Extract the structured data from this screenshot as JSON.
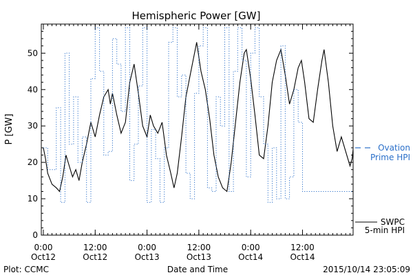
{
  "chart_data": {
    "type": "line",
    "title": "Hemispheric Power [GW]",
    "xlabel": "Date and Time",
    "ylabel": "P [GW]",
    "ylim": [
      0,
      58
    ],
    "yticks": [
      0,
      10,
      20,
      30,
      40,
      50
    ],
    "x_start": "2015-10-12 00:00",
    "x_end": "2015-10-14 23:05",
    "xticks": [
      {
        "t": "2015-10-12 00:00",
        "line1": "0:00",
        "line2": "Oct12"
      },
      {
        "t": "2015-10-12 12:00",
        "line1": "12:00",
        "line2": "Oct12"
      },
      {
        "t": "2015-10-13 00:00",
        "line1": "0:00",
        "line2": "Oct13"
      },
      {
        "t": "2015-10-13 12:00",
        "line1": "12:00",
        "line2": "Oct13"
      },
      {
        "t": "2015-10-14 00:00",
        "line1": "0:00",
        "line2": "Oct14"
      },
      {
        "t": "2015-10-14 12:00",
        "line1": "12:00",
        "line2": "Oct14"
      }
    ],
    "grid": false,
    "legend_position": "right",
    "series": [
      {
        "name": "SWPC 5-min HPI",
        "legend_lines": [
          "SWPC",
          "5-min HPI"
        ],
        "style": "solid",
        "color": "#000000",
        "points": [
          [
            "2015-10-12 00:00",
            24
          ],
          [
            "2015-10-12 00:30",
            21
          ],
          [
            "2015-10-12 01:00",
            17
          ],
          [
            "2015-10-12 02:00",
            14
          ],
          [
            "2015-10-12 03:00",
            13
          ],
          [
            "2015-10-12 03:45",
            12
          ],
          [
            "2015-10-12 04:30",
            16
          ],
          [
            "2015-10-12 05:15",
            22
          ],
          [
            "2015-10-12 06:00",
            19
          ],
          [
            "2015-10-12 06:45",
            16
          ],
          [
            "2015-10-12 07:30",
            18
          ],
          [
            "2015-10-12 08:15",
            15
          ],
          [
            "2015-10-12 09:00",
            20
          ],
          [
            "2015-10-12 10:00",
            25
          ],
          [
            "2015-10-12 11:00",
            31
          ],
          [
            "2015-10-12 12:00",
            27
          ],
          [
            "2015-10-12 13:00",
            33
          ],
          [
            "2015-10-12 14:00",
            38
          ],
          [
            "2015-10-12 15:00",
            40
          ],
          [
            "2015-10-12 15:30",
            36
          ],
          [
            "2015-10-12 16:00",
            39
          ],
          [
            "2015-10-12 17:00",
            33
          ],
          [
            "2015-10-12 18:00",
            28
          ],
          [
            "2015-10-12 19:00",
            31
          ],
          [
            "2015-10-12 20:00",
            42
          ],
          [
            "2015-10-12 21:00",
            47
          ],
          [
            "2015-10-12 22:00",
            39
          ],
          [
            "2015-10-12 23:00",
            30
          ],
          [
            "2015-10-13 00:00",
            27
          ],
          [
            "2015-10-13 00:45",
            33
          ],
          [
            "2015-10-13 01:30",
            30
          ],
          [
            "2015-10-13 02:30",
            28
          ],
          [
            "2015-10-13 03:30",
            31
          ],
          [
            "2015-10-13 04:30",
            22
          ],
          [
            "2015-10-13 05:30",
            17
          ],
          [
            "2015-10-13 06:15",
            13
          ],
          [
            "2015-10-13 07:00",
            17
          ],
          [
            "2015-10-13 08:00",
            27
          ],
          [
            "2015-10-13 09:00",
            38
          ],
          [
            "2015-10-13 10:00",
            44
          ],
          [
            "2015-10-13 11:00",
            50
          ],
          [
            "2015-10-13 11:30",
            53
          ],
          [
            "2015-10-13 12:30",
            45
          ],
          [
            "2015-10-13 13:30",
            40
          ],
          [
            "2015-10-13 14:30",
            32
          ],
          [
            "2015-10-13 15:30",
            22
          ],
          [
            "2015-10-13 16:30",
            16
          ],
          [
            "2015-10-13 17:30",
            13
          ],
          [
            "2015-10-13 18:30",
            12
          ],
          [
            "2015-10-13 19:30",
            20
          ],
          [
            "2015-10-13 20:30",
            31
          ],
          [
            "2015-10-13 21:30",
            42
          ],
          [
            "2015-10-13 22:30",
            50
          ],
          [
            "2015-10-13 23:00",
            51
          ],
          [
            "2015-10-14 00:00",
            43
          ],
          [
            "2015-10-14 01:00",
            33
          ],
          [
            "2015-10-14 02:00",
            22
          ],
          [
            "2015-10-14 03:00",
            21
          ],
          [
            "2015-10-14 04:00",
            30
          ],
          [
            "2015-10-14 05:00",
            42
          ],
          [
            "2015-10-14 06:00",
            48
          ],
          [
            "2015-10-14 07:00",
            51
          ],
          [
            "2015-10-14 08:00",
            44
          ],
          [
            "2015-10-14 09:00",
            36
          ],
          [
            "2015-10-14 10:00",
            40
          ],
          [
            "2015-10-14 11:00",
            46
          ],
          [
            "2015-10-14 11:45",
            48
          ],
          [
            "2015-10-14 12:30",
            42
          ],
          [
            "2015-10-14 13:30",
            32
          ],
          [
            "2015-10-14 14:30",
            31
          ],
          [
            "2015-10-14 15:30",
            40
          ],
          [
            "2015-10-14 16:30",
            48
          ],
          [
            "2015-10-14 17:00",
            51
          ],
          [
            "2015-10-14 18:00",
            42
          ],
          [
            "2015-10-14 19:00",
            30
          ],
          [
            "2015-10-14 20:00",
            23
          ],
          [
            "2015-10-14 21:00",
            27
          ],
          [
            "2015-10-14 22:00",
            23
          ],
          [
            "2015-10-14 23:00",
            19
          ],
          [
            "2015-10-14 23:30",
            21
          ],
          [
            "2015-10-15 00:00",
            27
          ],
          [
            "2015-10-15 00:30",
            28
          ],
          [
            "2015-10-15 01:00",
            26
          ]
        ]
      },
      {
        "name": "Ovation Prime HPI",
        "legend_lines": [
          "Ovation",
          "Prime HPI"
        ],
        "style": "dotted-step",
        "color": "#2a6fc9",
        "points": [
          [
            "2015-10-12 00:00",
            24
          ],
          [
            "2015-10-12 01:00",
            18
          ],
          [
            "2015-10-12 03:00",
            35
          ],
          [
            "2015-10-12 04:00",
            9
          ],
          [
            "2015-10-12 05:00",
            50
          ],
          [
            "2015-10-12 06:00",
            25
          ],
          [
            "2015-10-12 07:00",
            38
          ],
          [
            "2015-10-12 08:00",
            20
          ],
          [
            "2015-10-12 09:00",
            27
          ],
          [
            "2015-10-12 10:00",
            9
          ],
          [
            "2015-10-12 11:00",
            43
          ],
          [
            "2015-10-12 12:00",
            57
          ],
          [
            "2015-10-12 13:00",
            45
          ],
          [
            "2015-10-12 14:00",
            22
          ],
          [
            "2015-10-12 15:00",
            23
          ],
          [
            "2015-10-12 16:00",
            54
          ],
          [
            "2015-10-12 17:00",
            47
          ],
          [
            "2015-10-12 18:00",
            34
          ],
          [
            "2015-10-12 19:00",
            57
          ],
          [
            "2015-10-12 20:00",
            15
          ],
          [
            "2015-10-12 21:00",
            25
          ],
          [
            "2015-10-12 22:00",
            41
          ],
          [
            "2015-10-12 23:00",
            57
          ],
          [
            "2015-10-13 00:00",
            9
          ],
          [
            "2015-10-13 01:00",
            29
          ],
          [
            "2015-10-13 02:00",
            21
          ],
          [
            "2015-10-13 03:00",
            9
          ],
          [
            "2015-10-13 04:00",
            24
          ],
          [
            "2015-10-13 05:00",
            53
          ],
          [
            "2015-10-13 06:00",
            57
          ],
          [
            "2015-10-13 07:00",
            38
          ],
          [
            "2015-10-13 08:00",
            44
          ],
          [
            "2015-10-13 09:00",
            17
          ],
          [
            "2015-10-13 10:00",
            10
          ],
          [
            "2015-10-13 11:00",
            39
          ],
          [
            "2015-10-13 12:00",
            52
          ],
          [
            "2015-10-13 13:00",
            57
          ],
          [
            "2015-10-13 14:00",
            13
          ],
          [
            "2015-10-13 15:00",
            12
          ],
          [
            "2015-10-13 16:00",
            38
          ],
          [
            "2015-10-13 17:00",
            30
          ],
          [
            "2015-10-13 18:00",
            57
          ],
          [
            "2015-10-13 19:00",
            12
          ],
          [
            "2015-10-13 20:00",
            45
          ],
          [
            "2015-10-13 21:00",
            57
          ],
          [
            "2015-10-13 22:00",
            48
          ],
          [
            "2015-10-13 23:00",
            16
          ],
          [
            "2015-10-14 00:00",
            50
          ],
          [
            "2015-10-14 01:00",
            57
          ],
          [
            "2015-10-14 02:00",
            38
          ],
          [
            "2015-10-14 03:00",
            25
          ],
          [
            "2015-10-14 04:00",
            9
          ],
          [
            "2015-10-14 05:00",
            24
          ],
          [
            "2015-10-14 06:00",
            10
          ],
          [
            "2015-10-14 07:00",
            52
          ],
          [
            "2015-10-14 08:00",
            10
          ],
          [
            "2015-10-14 09:00",
            16
          ],
          [
            "2015-10-14 10:00",
            40
          ],
          [
            "2015-10-14 11:00",
            31
          ],
          [
            "2015-10-14 12:00",
            12
          ],
          [
            "2015-10-15 01:00",
            12
          ]
        ]
      }
    ]
  },
  "footer": {
    "plot_credit": "Plot: CCMC",
    "timestamp": "2015/10/14 23:05:09"
  }
}
